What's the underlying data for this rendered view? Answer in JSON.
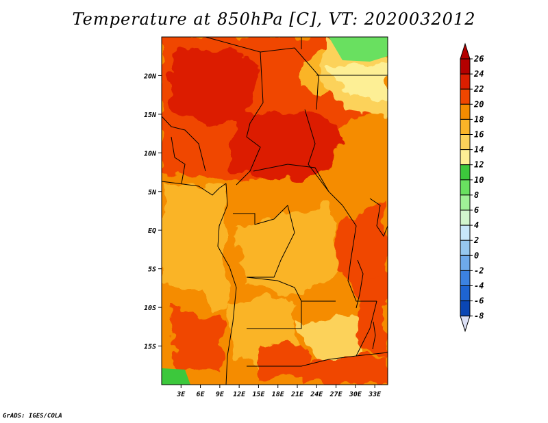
{
  "title": "Temperature at 850hPa [C], VT: 2020032012",
  "credit": "GrADS: IGES/COLA",
  "map": {
    "lon_range": [
      0,
      35
    ],
    "lat_range": [
      -20,
      25
    ],
    "lat_ticks": [
      {
        "value": 20,
        "label": "20N"
      },
      {
        "value": 15,
        "label": "15N"
      },
      {
        "value": 10,
        "label": "10N"
      },
      {
        "value": 5,
        "label": "5N"
      },
      {
        "value": 0,
        "label": "EQ"
      },
      {
        "value": -5,
        "label": "5S"
      },
      {
        "value": -10,
        "label": "10S"
      },
      {
        "value": -15,
        "label": "15S"
      }
    ],
    "lon_ticks": [
      {
        "value": 3,
        "label": "3E"
      },
      {
        "value": 6,
        "label": "6E"
      },
      {
        "value": 9,
        "label": "9E"
      },
      {
        "value": 12,
        "label": "12E"
      },
      {
        "value": 15,
        "label": "15E"
      },
      {
        "value": 18,
        "label": "18E"
      },
      {
        "value": 21,
        "label": "21E"
      },
      {
        "value": 24,
        "label": "24E"
      },
      {
        "value": 27,
        "label": "27E"
      },
      {
        "value": 30,
        "label": "30E"
      },
      {
        "value": 33,
        "label": "33E"
      }
    ]
  },
  "colorbar": {
    "levels": [
      {
        "label": "26",
        "color": "#b40000"
      },
      {
        "label": "24",
        "color": "#dc1e00"
      },
      {
        "label": "22",
        "color": "#f04600"
      },
      {
        "label": "20",
        "color": "#f58c00"
      },
      {
        "label": "18",
        "color": "#fab428"
      },
      {
        "label": "16",
        "color": "#fcd25a"
      },
      {
        "label": "14",
        "color": "#fdef95"
      },
      {
        "label": "12",
        "color": "#3cc83c"
      },
      {
        "label": "10",
        "color": "#69e060"
      },
      {
        "label": "8",
        "color": "#a0f097"
      },
      {
        "label": "6",
        "color": "#d2f5ce"
      },
      {
        "label": "4",
        "color": "#c8e6fa"
      },
      {
        "label": "2",
        "color": "#96c8f0"
      },
      {
        "label": "0",
        "color": "#6eaaeb"
      },
      {
        "label": "-2",
        "color": "#3c82e1"
      },
      {
        "label": "-4",
        "color": "#1e64d2"
      },
      {
        "label": "-6",
        "color": "#0a46b4"
      },
      {
        "label": "-8",
        "color": "#0a1e8c"
      }
    ],
    "top_arrow_color": "#b40000",
    "bottom_arrow_color": "#dce0f5"
  }
}
